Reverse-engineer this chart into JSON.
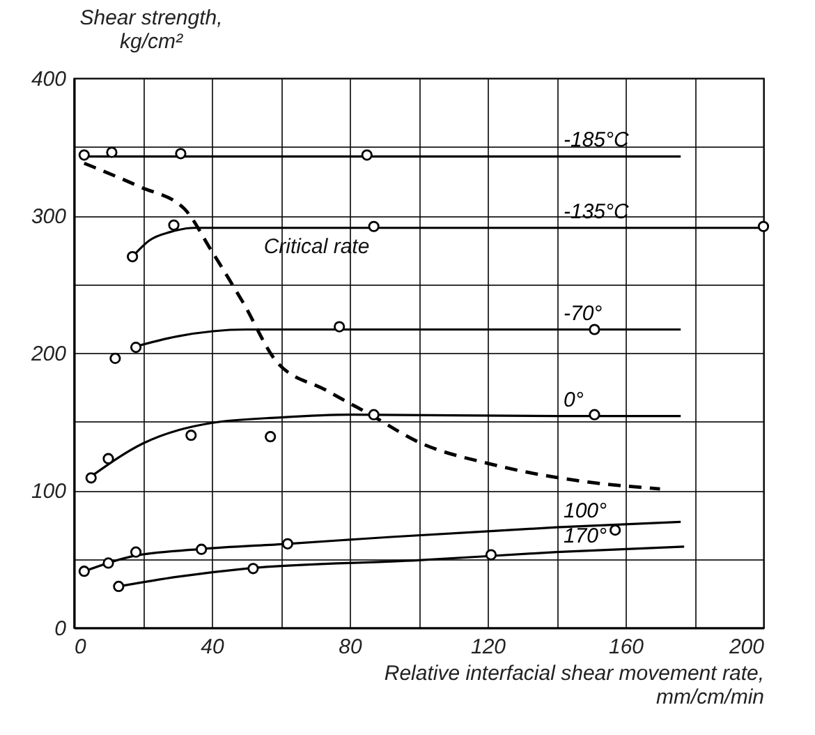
{
  "chart_data": {
    "type": "line",
    "xlabel": "Relative interfacial shear movement rate,\nmm/cm/min",
    "ylabel": "Shear strength,\nkg/cm²",
    "xlim": [
      0,
      200
    ],
    "ylim": [
      0,
      400
    ],
    "xticks": [
      0,
      {
        "value": 20,
        "label": null
      },
      40,
      {
        "value": 60,
        "label": null
      },
      80,
      {
        "value": 100,
        "label": null
      },
      120,
      {
        "value": 140,
        "label": null
      },
      160,
      {
        "value": 180,
        "label": null
      },
      200
    ],
    "yticks": [
      0,
      {
        "value": 50,
        "label": null
      },
      100,
      {
        "value": 150,
        "label": null
      },
      200,
      {
        "value": 250,
        "label": null
      },
      300,
      {
        "value": 350,
        "label": null
      },
      400
    ],
    "grid": true,
    "annotations": [
      {
        "text": "Critical rate",
        "x": 47,
        "y": 245
      }
    ],
    "series": [
      {
        "name": "-185°C",
        "type": "line",
        "color": "#000000",
        "x": [
          2,
          100,
          176
        ],
        "values": [
          343,
          343,
          343
        ]
      },
      {
        "name": "-135°C",
        "type": "line",
        "color": "#000000",
        "x": [
          17,
          22,
          28,
          35,
          50,
          140,
          200
        ],
        "values": [
          270,
          282,
          288,
          291,
          291,
          291,
          291
        ]
      },
      {
        "name": "-70°",
        "type": "line",
        "color": "#000000",
        "x": [
          17,
          30,
          50,
          80,
          140,
          176
        ],
        "values": [
          204,
          212,
          217,
          217,
          217,
          217
        ]
      },
      {
        "name": "0°",
        "type": "line",
        "color": "#000000",
        "x": [
          5,
          20,
          40,
          60,
          80,
          140,
          176
        ],
        "values": [
          110,
          134,
          149,
          153,
          155,
          154,
          154
        ]
      },
      {
        "name": "100°",
        "type": "line",
        "color": "#000000",
        "x": [
          3,
          17,
          36,
          62,
          92,
          140,
          176
        ],
        "values": [
          41,
          52,
          57,
          61,
          66,
          73,
          77
        ]
      },
      {
        "name": "170°",
        "type": "line",
        "color": "#000000",
        "x": [
          13,
          30,
          50,
          100,
          140,
          177
        ],
        "values": [
          30,
          37,
          43,
          49,
          55,
          59
        ]
      },
      {
        "type": "line",
        "line_style": "dashed",
        "color": "#000000",
        "x": [
          3,
          19,
          32,
          40,
          49,
          59,
          73,
          86,
          100,
          121,
          146,
          170
        ],
        "values": [
          338,
          321,
          305,
          274,
          237,
          193,
          173,
          155,
          135,
          119,
          107,
          101
        ]
      },
      {
        "type": "scatter",
        "marker": "circle",
        "color": "#000000",
        "x": [
          3,
          11,
          31,
          85
        ],
        "values": [
          344,
          346,
          345,
          344
        ]
      },
      {
        "type": "scatter",
        "marker": "circle",
        "color": "#000000",
        "x": [
          17,
          29,
          87,
          200
        ],
        "values": [
          270,
          293,
          292,
          292
        ]
      },
      {
        "type": "scatter",
        "marker": "circle",
        "color": "#000000",
        "x": [
          12,
          18,
          77,
          151
        ],
        "values": [
          196,
          204,
          219,
          217
        ]
      },
      {
        "type": "scatter",
        "marker": "circle",
        "color": "#000000",
        "x": [
          5,
          10,
          34,
          57,
          87,
          151
        ],
        "values": [
          109,
          123,
          140,
          139,
          155,
          155
        ]
      },
      {
        "type": "scatter",
        "marker": "circle",
        "color": "#000000",
        "x": [
          3,
          10,
          18,
          37,
          62,
          157
        ],
        "values": [
          41,
          47,
          55,
          57,
          61,
          71
        ]
      },
      {
        "type": "scatter",
        "marker": "circle",
        "color": "#000000",
        "x": [
          13,
          52,
          121
        ],
        "values": [
          30,
          43,
          53
        ]
      }
    ]
  }
}
